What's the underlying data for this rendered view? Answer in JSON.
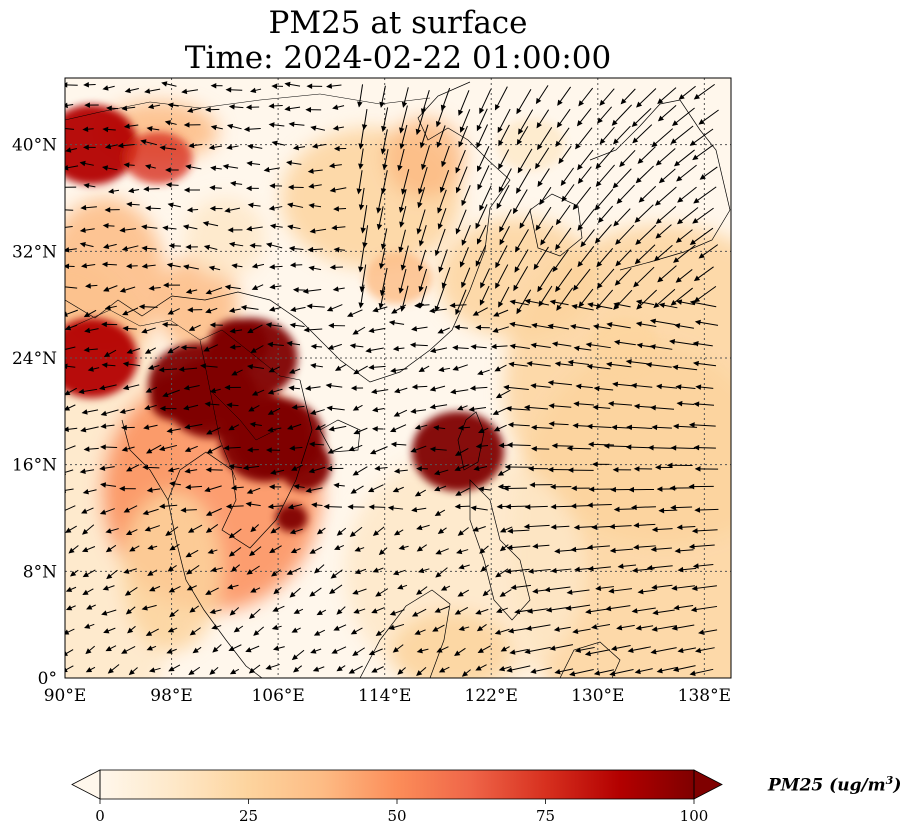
{
  "title": {
    "line1": "PM25 at surface",
    "line2": "Time: 2024-02-22 01:00:00"
  },
  "map": {
    "extent": {
      "lon_min": 90,
      "lon_max": 140,
      "lat_min": 0,
      "lat_max": 45
    },
    "gridlines": "dotted",
    "x_ticks": [
      {
        "value": 90,
        "label": "90°E"
      },
      {
        "value": 98,
        "label": "98°E"
      },
      {
        "value": 106,
        "label": "106°E"
      },
      {
        "value": 114,
        "label": "114°E"
      },
      {
        "value": 122,
        "label": "122°E"
      },
      {
        "value": 130,
        "label": "130°E"
      },
      {
        "value": 138,
        "label": "138°E"
      }
    ],
    "y_ticks": [
      {
        "value": 0,
        "label": "0°"
      },
      {
        "value": 8,
        "label": "8°N"
      },
      {
        "value": 16,
        "label": "16°N"
      },
      {
        "value": 24,
        "label": "24°N"
      },
      {
        "value": 32,
        "label": "32°N"
      },
      {
        "value": 40,
        "label": "40°N"
      }
    ],
    "overlays": [
      "coastlines",
      "country borders",
      "wind vectors"
    ]
  },
  "colorbar": {
    "label": "PM25 (ug/m",
    "label_exponent": "3",
    "label_close": ")",
    "colormap": "OrRd",
    "min": 0,
    "max": 100,
    "extend": "both",
    "ticks": [
      {
        "value": 0,
        "label": "0"
      },
      {
        "value": 25,
        "label": "25"
      },
      {
        "value": 50,
        "label": "50"
      },
      {
        "value": 75,
        "label": "75"
      },
      {
        "value": 100,
        "label": "100"
      }
    ],
    "colors": [
      "#fff7ec",
      "#fee8c8",
      "#fdd49e",
      "#fdbb84",
      "#fc8d59",
      "#ef6548",
      "#d7301f",
      "#b30000",
      "#7f0000"
    ]
  },
  "chart_data": {
    "type": "heatmap",
    "title": "PM25 at surface\nTime: 2024-02-22 01:00:00",
    "xlabel": "",
    "ylabel": "",
    "xlim": [
      90,
      140
    ],
    "ylim": [
      0,
      45
    ],
    "colorbar_range": [
      0,
      100
    ],
    "pm25_regions": [
      {
        "lon": 92,
        "lat": 40,
        "value": 90
      },
      {
        "lon": 97,
        "lat": 39,
        "value": 70
      },
      {
        "lon": 101,
        "lat": 21,
        "value": 100
      },
      {
        "lon": 106,
        "lat": 18,
        "value": 100
      },
      {
        "lon": 104,
        "lat": 24,
        "value": 95
      },
      {
        "lon": 92,
        "lat": 24,
        "value": 85
      },
      {
        "lon": 119.5,
        "lat": 17,
        "value": 100
      },
      {
        "lon": 115,
        "lat": 30,
        "value": 35
      },
      {
        "lon": 132,
        "lat": 25,
        "value": 30
      },
      {
        "lon": 125,
        "lat": 40,
        "value": 12
      }
    ]
  }
}
